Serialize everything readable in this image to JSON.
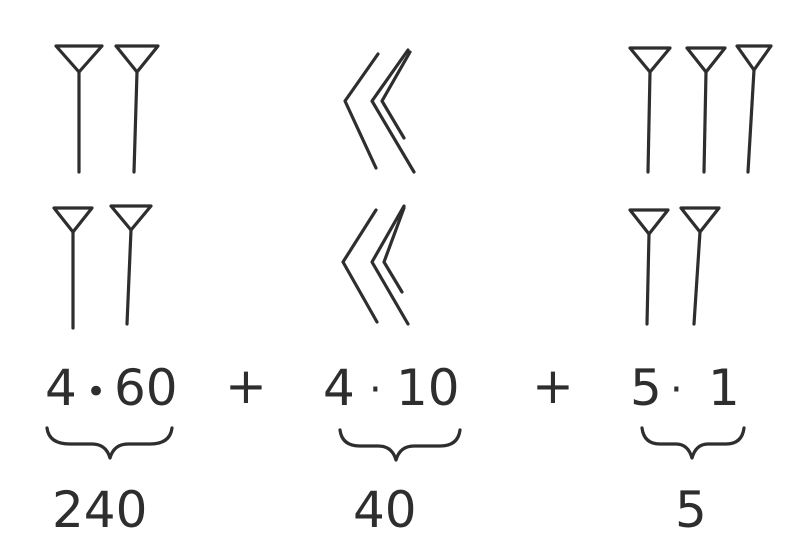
{
  "figure": {
    "top_row": {
      "left_group": {
        "symbol": "unit-wedge",
        "count": 2
      },
      "middle_group": {
        "symbol": "ten-chevron",
        "count": 2
      },
      "right_group": {
        "symbol": "unit-wedge",
        "count": 3
      }
    },
    "bottom_row": {
      "left_group": {
        "symbol": "unit-wedge",
        "count": 2
      },
      "middle_group": {
        "symbol": "ten-chevron",
        "count": 2
      },
      "right_group": {
        "symbol": "unit-wedge",
        "count": 2
      }
    },
    "expression": {
      "term1": {
        "factor": "4",
        "dot": "•",
        "multiplier": "60",
        "result": "240"
      },
      "op1": "+",
      "term2": {
        "factor": "4",
        "dot": "·",
        "multiplier": "10",
        "result": "40"
      },
      "op2": "+",
      "term3": {
        "factor": "5",
        "dot": "·",
        "multiplier": "1",
        "result": "5"
      }
    },
    "ink_color": "#2e2e2e"
  }
}
